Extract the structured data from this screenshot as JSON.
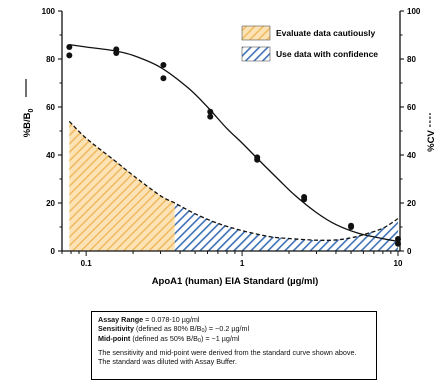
{
  "chart_data": {
    "type": "scatter",
    "x_scale": "log",
    "xlabel": "ApoA1 (human) EIA Standard (µg/ml)",
    "ylabel_left": "%B/B",
    "ylabel_left_sub": "0",
    "ylabel_right": "%CV",
    "xlim": [
      0.07,
      10.3
    ],
    "ylim_left": [
      0,
      100
    ],
    "ylim_right": [
      0,
      100
    ],
    "x_ticks": [
      0.1,
      1,
      10
    ],
    "x_tick_labels": [
      "0.1",
      "1",
      "10"
    ],
    "y_ticks": [
      0,
      20,
      40,
      60,
      80,
      100
    ],
    "y_tick_labels": [
      "0",
      "20",
      "40",
      "60",
      "80",
      "100"
    ],
    "grid": false,
    "legend_position": "top-right",
    "legend": [
      {
        "label": "Evaluate data cautiously",
        "pattern": "hatch",
        "color": "#f3c27a"
      },
      {
        "label": "Use data with confidence",
        "pattern": "hatch",
        "color": "#3f72b5"
      }
    ],
    "series": [
      {
        "axis": "left",
        "kind": "points",
        "x": [
          0.078,
          0.078,
          0.156,
          0.156,
          0.313,
          0.313,
          0.625,
          0.625,
          1.25,
          1.25,
          2.5,
          2.5,
          5,
          5,
          10,
          10
        ],
        "y": [
          85,
          81.5,
          84,
          82.5,
          77.5,
          72,
          58,
          56,
          39,
          38,
          22.5,
          21.5,
          10.5,
          10,
          5,
          3
        ]
      },
      {
        "axis": "left",
        "kind": "fit",
        "x": [
          0.078,
          0.1,
          0.15,
          0.2,
          0.3,
          0.45,
          0.6,
          0.8,
          1,
          1.3,
          1.7,
          2.2,
          3,
          4,
          5.5,
          7.5,
          10
        ],
        "y": [
          86,
          85,
          83.5,
          81.5,
          76.5,
          68,
          60,
          51,
          45,
          37.5,
          30,
          23,
          16,
          11,
          7.5,
          5.5,
          4
        ]
      },
      {
        "axis": "right",
        "kind": "cv",
        "x": [
          0.078,
          0.1,
          0.15,
          0.2,
          0.3,
          0.37,
          0.5,
          0.7,
          1,
          1.5,
          2,
          3,
          4,
          5,
          6,
          8,
          10
        ],
        "y": [
          54,
          47,
          38,
          31.5,
          23,
          20,
          15.5,
          11.5,
          8.5,
          6,
          5.2,
          4.5,
          4.6,
          5.5,
          6.8,
          9.5,
          13.5
        ]
      }
    ],
    "regions": {
      "caution_x": [
        0.078,
        0.37
      ],
      "confidence_x": [
        0.37,
        10
      ]
    }
  },
  "info_box": {
    "range_label": "Assay Range",
    "range_value": " = 0.078-10 µg/ml",
    "sensitivity_label": "Sensitivity",
    "sensitivity_pre": " (defined as 80% B/B",
    "sensitivity_sub": "0",
    "sensitivity_post": ") =  ~0.2 µg/ml",
    "midpoint_label": "Mid-point",
    "midpoint_pre": " (defined as 50% B/B",
    "midpoint_sub": "0",
    "midpoint_post": ") =  ~1 µg/ml",
    "note": "The sensitivity and mid-point were derived from the standard curve shown above. The standard was diluted with Assay Buffer."
  }
}
